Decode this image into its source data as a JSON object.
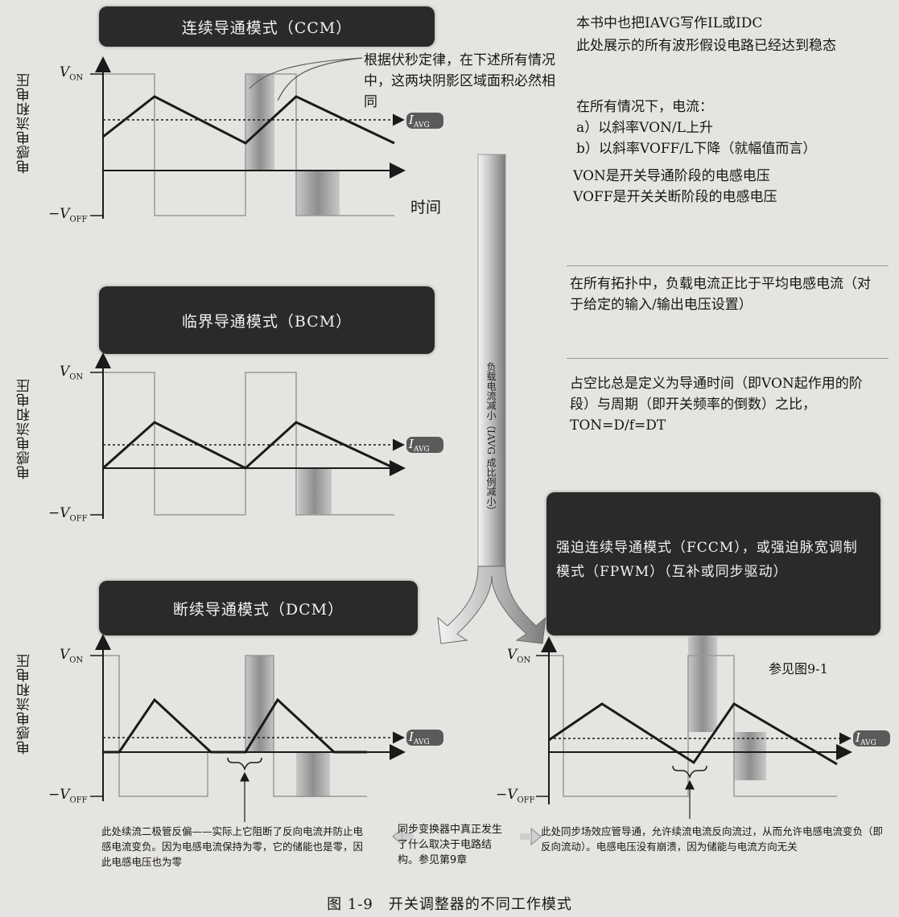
{
  "banners": {
    "ccm": "连续导通模式（CCM）",
    "bcm": "临界导通模式（BCM）",
    "dcm": "断续导通模式（DCM）",
    "fccm": "强迫连续导通模式（FCCM），或强迫脉宽调制模式（FPWM）（互补或同步驱动）"
  },
  "axes": {
    "y_label": "电感电流和电压",
    "v_on": "V",
    "v_on_sub": "ON",
    "v_off": "−V",
    "v_off_sub": "OFF",
    "time": "时间",
    "i_avg": "I",
    "i_avg_sub": "AVG"
  },
  "annotations": {
    "volt_second": "根据伏秒定律，在下述所有情况中，这两块阴影区域面积必然相同",
    "vertical_arrow": "负载电流减小（IAVG 成比例减小）",
    "see_fig": "参见图9-1"
  },
  "notes": {
    "top": "本书中也把IAVG写作IL或IDC",
    "steady": "此处展示的所有波形假设电路已经达到稳态",
    "all_cases": "在所有情况下，电流：",
    "rise": "a）以斜率VON/L上升",
    "fall": "b）以斜率VOFF/L下降（就幅值而言）",
    "von_def": "VON是开关导通阶段的电感电压",
    "voff_def": "VOFF是开关关断阶段的电感电压",
    "load": "在所有拓扑中，负载电流正比于平均电感电流（对于给定的输入/输出电压设置）",
    "duty": "占空比总是定义为导通时间（即VON起作用的阶段）与周期（即开关频率的倒数）之比，TON=D/f=DT"
  },
  "bottom": {
    "left": "此处续流二极管反偏——实际上它阻断了反向电流并防止电感电流变负。因为电感电流保持为零，它的储能也是零，因此电感电压也为零",
    "middle": "同步变换器中真正发生了什么取决于电路结构。参见第9章",
    "right": "此处同步场效应管导通，允许续流电流反向流过，从而允许电感电流变负（即反向流动）。电感电压没有崩溃，因为储能与电流方向无关"
  },
  "figure_caption": "图 1-9　开关调整器的不同工作模式",
  "colors": {
    "banner": "#2a2a2a",
    "background": "#e6e4e0",
    "waveform": "#1a1a1a",
    "shade": "#9c9c9c"
  }
}
